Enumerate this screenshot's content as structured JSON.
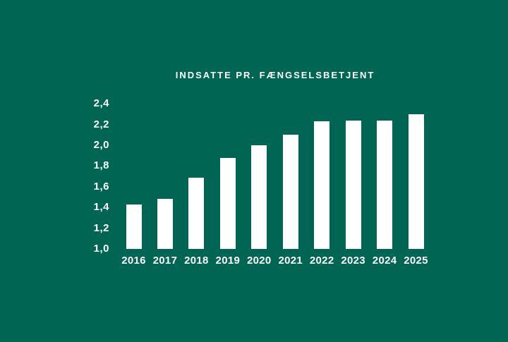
{
  "colors": {
    "background": "#006653",
    "bar": "#ffffff",
    "text": "#ffffff"
  },
  "chart_data": {
    "type": "bar",
    "title": "INDSATTE PR. FÆNGSELSBETJENT",
    "categories": [
      "2016",
      "2017",
      "2018",
      "2019",
      "2020",
      "2021",
      "2022",
      "2023",
      "2024",
      "2025"
    ],
    "values": [
      1.43,
      1.48,
      1.69,
      1.88,
      2.0,
      2.1,
      2.23,
      2.24,
      2.24,
      2.3
    ],
    "xlabel": "",
    "ylabel": "",
    "ylim": [
      1.0,
      2.4
    ],
    "ytick_step": 0.2,
    "ytick_labels": [
      "2,4",
      "2,2",
      "2,0",
      "1,8",
      "1,6",
      "1,4",
      "1,2",
      "1,0"
    ],
    "decimal_separator": ",",
    "grid": false,
    "legend": false
  }
}
